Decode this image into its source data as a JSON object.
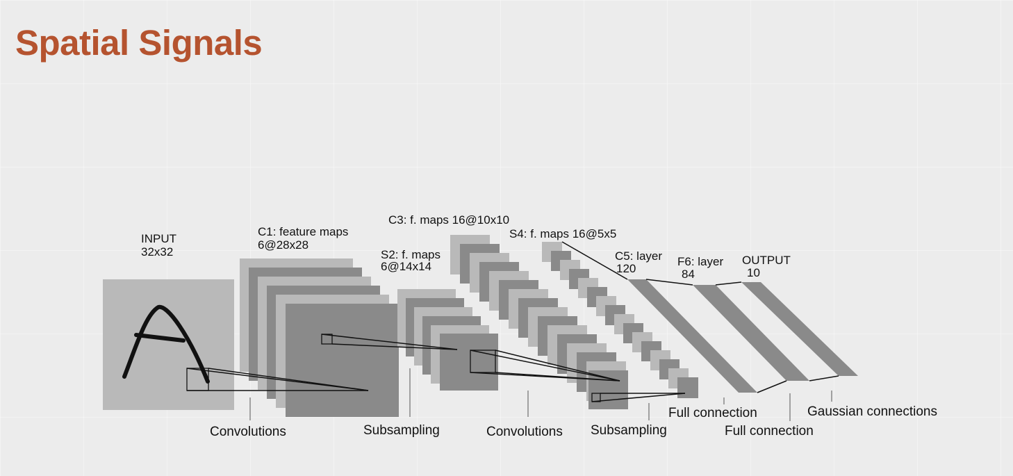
{
  "title": "Spatial Signals",
  "colors": {
    "title": "#b5532f",
    "map_light": "#b9b9b9",
    "map_dark": "#8a8a8a",
    "lines": "#111111"
  },
  "diagram": {
    "layers": {
      "input": {
        "name": "INPUT",
        "size": "32x32"
      },
      "c1": {
        "name": "C1: feature maps",
        "size": "6@28x28"
      },
      "s2": {
        "name": "S2: f. maps",
        "size": "6@14x14"
      },
      "c3": {
        "label": "C3: f. maps 16@10x10"
      },
      "s4": {
        "label": "S4: f. maps 16@5x5"
      },
      "c5": {
        "name": "C5: layer",
        "size": "120"
      },
      "f6": {
        "name": "F6: layer",
        "size": "84"
      },
      "output": {
        "name": "OUTPUT",
        "size": "10"
      }
    },
    "operations": {
      "conv1": "Convolutions",
      "sub1": "Subsampling",
      "conv2": "Convolutions",
      "sub2": "Subsampling",
      "full1": "Full connection",
      "full2": "Full connection",
      "gauss": "Gaussian connections"
    }
  }
}
